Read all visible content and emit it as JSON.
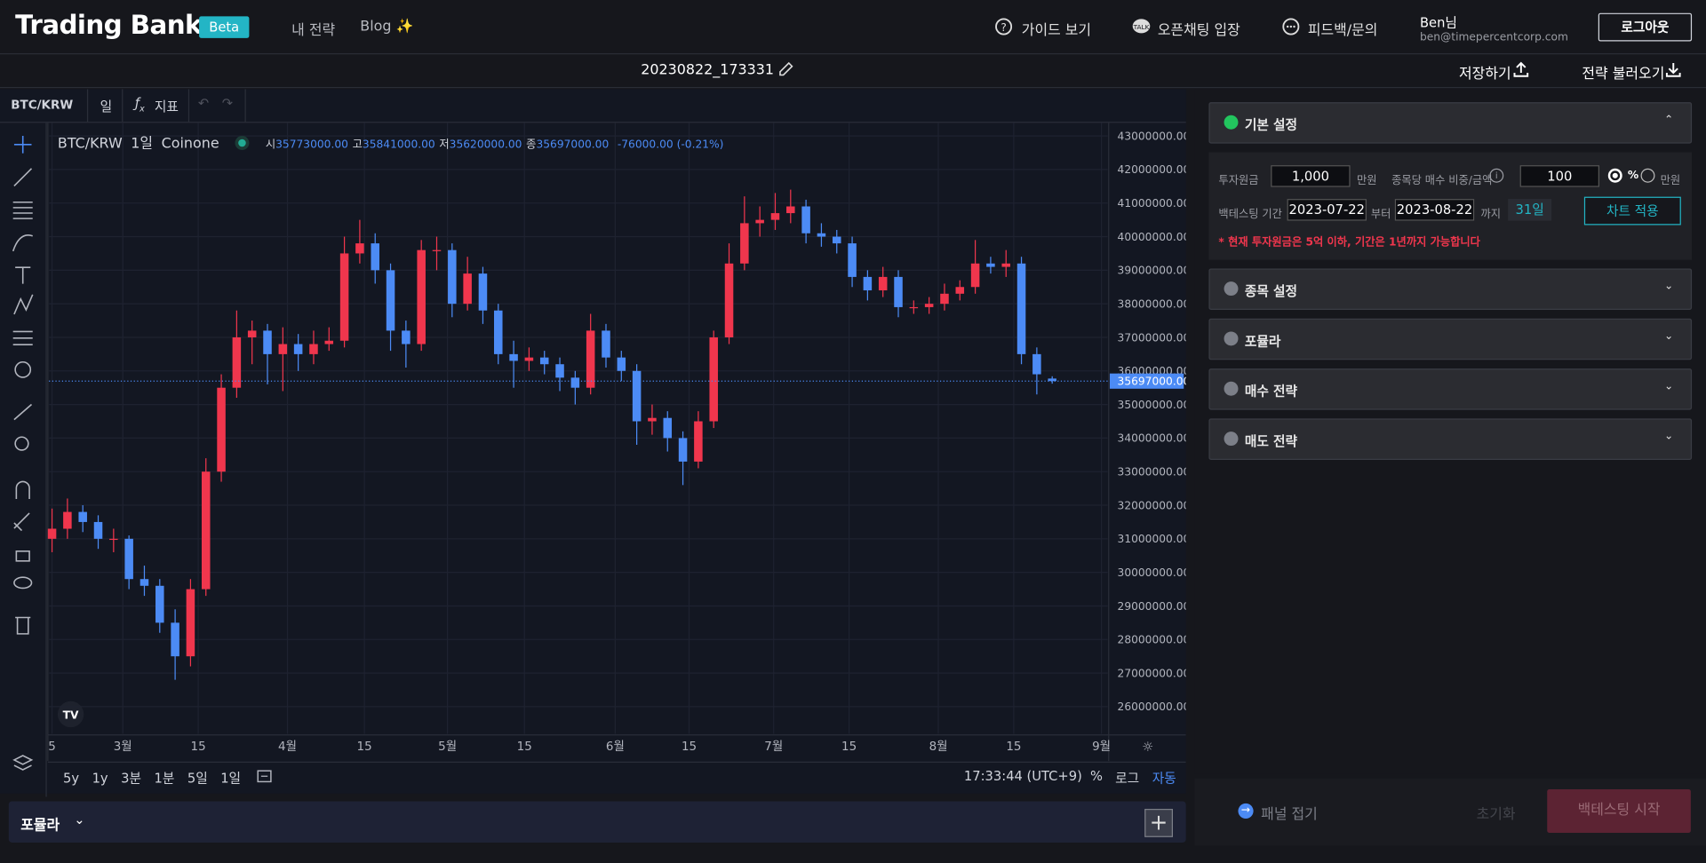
{
  "nav": {
    "logo": "Trading Bank",
    "badge": "Beta",
    "links": [
      "내 전략",
      "Blog ✨"
    ],
    "guide": "가이드 보기",
    "openchat": "오픈채팅 입장",
    "feedback": "피드백/문의",
    "user_name": "Ben님",
    "user_email": "ben@timepercentcorp.com",
    "logout": "로그아웃"
  },
  "subheader": {
    "strategy_name": "20230822_173331",
    "save": "저장하기",
    "load": "전략 불러오기"
  },
  "chart_toolbar": {
    "symbol": "BTC/KRW",
    "interval": "일",
    "indicators": "지표"
  },
  "chart_data": {
    "type": "candlestick",
    "legend": {
      "symbol": "BTC/KRW",
      "interval": "1일",
      "exchange": "Coinone",
      "open_label": "시",
      "open": "35773000.00",
      "high_label": "고",
      "high": "35841000.00",
      "low_label": "저",
      "low": "35620000.00",
      "close_label": "종",
      "close": "35697000.00",
      "change": "-76000.00 (-0.21%)"
    },
    "up_color": "#f0364d",
    "down_color": "#4c8bf5",
    "candles": [
      [
        31000000,
        31900000,
        30600000,
        31300000
      ],
      [
        31300000,
        32200000,
        31000000,
        31800000
      ],
      [
        31800000,
        32000000,
        31200000,
        31500000
      ],
      [
        31500000,
        31700000,
        30700000,
        31000000
      ],
      [
        31000000,
        31300000,
        30600000,
        31000000
      ],
      [
        31000000,
        31100000,
        29500000,
        29800000
      ],
      [
        29800000,
        30200000,
        29300000,
        29600000
      ],
      [
        29600000,
        29800000,
        28200000,
        28500000
      ],
      [
        28500000,
        28900000,
        26800000,
        27500000
      ],
      [
        27500000,
        29800000,
        27200000,
        29500000
      ],
      [
        29500000,
        33400000,
        29300000,
        33000000
      ],
      [
        33000000,
        35900000,
        32700000,
        35500000
      ],
      [
        35500000,
        37800000,
        35200000,
        37000000
      ],
      [
        37000000,
        37500000,
        36200000,
        37200000
      ],
      [
        37200000,
        37400000,
        35600000,
        36500000
      ],
      [
        36500000,
        37300000,
        35400000,
        36800000
      ],
      [
        36800000,
        37100000,
        36000000,
        36500000
      ],
      [
        36500000,
        37200000,
        36200000,
        36800000
      ],
      [
        36800000,
        37300000,
        36600000,
        36900000
      ],
      [
        36900000,
        40000000,
        36700000,
        39500000
      ],
      [
        39500000,
        40500000,
        39200000,
        39800000
      ],
      [
        39800000,
        40100000,
        38600000,
        39000000
      ],
      [
        39000000,
        39200000,
        36600000,
        37200000
      ],
      [
        37200000,
        37500000,
        36100000,
        36800000
      ],
      [
        36800000,
        39900000,
        36600000,
        39600000
      ],
      [
        39600000,
        40000000,
        39000000,
        39600000
      ],
      [
        39600000,
        39800000,
        37600000,
        38000000
      ],
      [
        38000000,
        39400000,
        37800000,
        38900000
      ],
      [
        38900000,
        39100000,
        37400000,
        37800000
      ],
      [
        37800000,
        38000000,
        36200000,
        36500000
      ],
      [
        36500000,
        36900000,
        35500000,
        36300000
      ],
      [
        36300000,
        36700000,
        36000000,
        36400000
      ],
      [
        36400000,
        36600000,
        35900000,
        36200000
      ],
      [
        36200000,
        36400000,
        35400000,
        35800000
      ],
      [
        35800000,
        36000000,
        35000000,
        35500000
      ],
      [
        35500000,
        37700000,
        35300000,
        37200000
      ],
      [
        37200000,
        37400000,
        36100000,
        36400000
      ],
      [
        36400000,
        36600000,
        35700000,
        36000000
      ],
      [
        36000000,
        36200000,
        33800000,
        34500000
      ],
      [
        34500000,
        35000000,
        34100000,
        34600000
      ],
      [
        34600000,
        34800000,
        33600000,
        34000000
      ],
      [
        34000000,
        34200000,
        32600000,
        33300000
      ],
      [
        33300000,
        34800000,
        33100000,
        34500000
      ],
      [
        34500000,
        37200000,
        34300000,
        37000000
      ],
      [
        37000000,
        39800000,
        36800000,
        39200000
      ],
      [
        39200000,
        41200000,
        39000000,
        40400000
      ],
      [
        40400000,
        40900000,
        40000000,
        40500000
      ],
      [
        40500000,
        41300000,
        40200000,
        40700000
      ],
      [
        40700000,
        41400000,
        40400000,
        40900000
      ],
      [
        40900000,
        41100000,
        39800000,
        40100000
      ],
      [
        40100000,
        40400000,
        39700000,
        40000000
      ],
      [
        40000000,
        40200000,
        39500000,
        39800000
      ],
      [
        39800000,
        40000000,
        38500000,
        38800000
      ],
      [
        38800000,
        39000000,
        38100000,
        38400000
      ],
      [
        38400000,
        39100000,
        38200000,
        38800000
      ],
      [
        38800000,
        39000000,
        37600000,
        37900000
      ],
      [
        37900000,
        38100000,
        37700000,
        37900000
      ],
      [
        37900000,
        38200000,
        37700000,
        38000000
      ],
      [
        38000000,
        38600000,
        37800000,
        38300000
      ],
      [
        38300000,
        38700000,
        38100000,
        38500000
      ],
      [
        38500000,
        39900000,
        38300000,
        39200000
      ],
      [
        39200000,
        39400000,
        38900000,
        39100000
      ],
      [
        39100000,
        39600000,
        38800000,
        39200000
      ],
      [
        39200000,
        39400000,
        36200000,
        36500000
      ],
      [
        36500000,
        36700000,
        35300000,
        35900000
      ],
      [
        35773000,
        35841000,
        35620000,
        35697000
      ]
    ],
    "ylim": [
      25190000,
      43260000
    ],
    "yticks": [
      {
        "value": 26000000,
        "label": "26000000.00"
      },
      {
        "value": 27000000,
        "label": "27000000.00"
      },
      {
        "value": 28000000,
        "label": "28000000.00"
      },
      {
        "value": 29000000,
        "label": "29000000.00"
      },
      {
        "value": 30000000,
        "label": "30000000.00"
      },
      {
        "value": 31000000,
        "label": "31000000.00"
      },
      {
        "value": 32000000,
        "label": "32000000.00"
      },
      {
        "value": 33000000,
        "label": "33000000.00"
      },
      {
        "value": 34000000,
        "label": "34000000.00"
      },
      {
        "value": 35000000,
        "label": "35000000.00"
      },
      {
        "value": 36000000,
        "label": "36000000.00"
      },
      {
        "value": 37000000,
        "label": "37000000.00"
      },
      {
        "value": 38000000,
        "label": "38000000.00"
      },
      {
        "value": 39000000,
        "label": "39000000.00"
      },
      {
        "value": 40000000,
        "label": "40000000.00"
      },
      {
        "value": 41000000,
        "label": "41000000.00"
      },
      {
        "value": 42000000,
        "label": "42000000.00"
      },
      {
        "value": 43000000,
        "label": "43000000.00"
      }
    ],
    "xlim": [
      -0.2,
      68.6
    ],
    "xticks": [
      {
        "value": 0,
        "label": "5"
      },
      {
        "value": 4.6,
        "label": "3월"
      },
      {
        "value": 9.5,
        "label": "15"
      },
      {
        "value": 15.3,
        "label": "4월"
      },
      {
        "value": 20.3,
        "label": "15"
      },
      {
        "value": 25.7,
        "label": "5월"
      },
      {
        "value": 30.7,
        "label": "15"
      },
      {
        "value": 36.6,
        "label": "6월"
      },
      {
        "value": 41.4,
        "label": "15"
      },
      {
        "value": 46.9,
        "label": "7월"
      },
      {
        "value": 51.8,
        "label": "15"
      },
      {
        "value": 57.6,
        "label": "8월"
      },
      {
        "value": 62.5,
        "label": "15"
      },
      {
        "value": 68.2,
        "label": "9월"
      }
    ],
    "grid": true
  },
  "bottom_toolbar": {
    "ranges": [
      "5y",
      "1y",
      "3분",
      "1분",
      "5일",
      "1일"
    ],
    "time": "17:33:44 (UTC+9)",
    "percent": "%",
    "log": "로그",
    "auto": "자동"
  },
  "formula_bar": {
    "title": "포뮬라"
  },
  "panel": {
    "sections": [
      "기본 설정",
      "종목 설정",
      "포뮬라",
      "매수 전략",
      "매도 전략"
    ],
    "basic": {
      "capital_label": "투자원금",
      "capital": "1,000",
      "capital_unit": "만원",
      "weight_label": "종목당 매수 비중/금액",
      "weight": "100",
      "opt_percent": "%",
      "opt_won": "만원",
      "period_label": "백테스팅 기간",
      "start": "2023-07-22",
      "from": "부터",
      "end": "2023-08-22",
      "until": "까지",
      "days": "31일",
      "apply": "차트 적용",
      "notice": "* 현재 투자원금은 5억 이하, 기간은 1년까지 가능합니다"
    },
    "collapse": "패널 접기",
    "reset": "초기화",
    "start_backtest": "백테스팅 시작"
  }
}
